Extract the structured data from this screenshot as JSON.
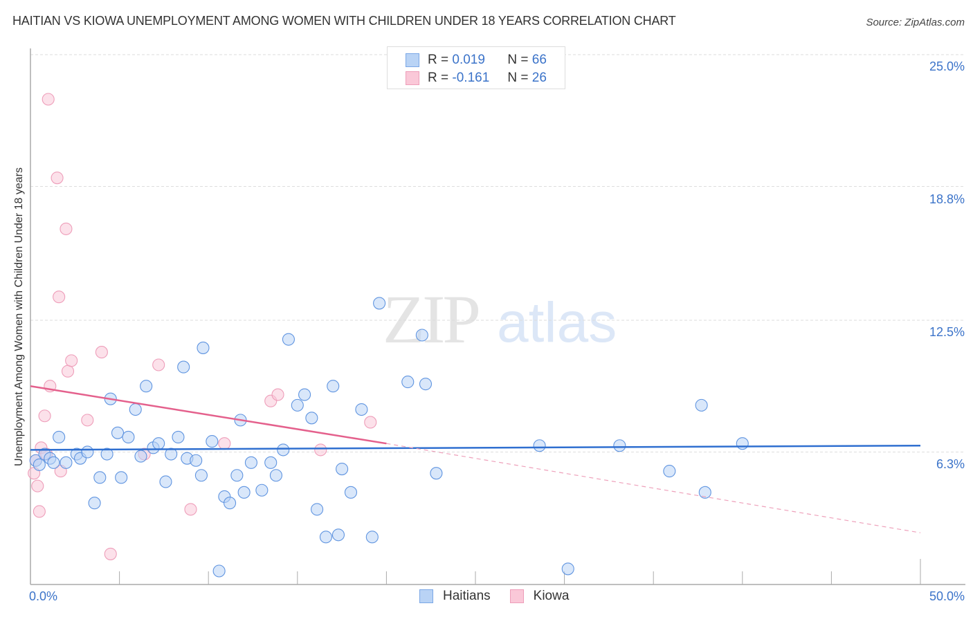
{
  "header": {
    "title": "HAITIAN VS KIOWA UNEMPLOYMENT AMONG WOMEN WITH CHILDREN UNDER 18 YEARS CORRELATION CHART",
    "source": "Source: ZipAtlas.com"
  },
  "watermark": {
    "zip": "ZIP",
    "atlas": "atlas"
  },
  "legend": {
    "rows": [
      {
        "r_label": "R =",
        "r_value": "0.019",
        "n_label": "N =",
        "n_value": "66",
        "color": "#b9d3f5",
        "border": "#7aa7e6"
      },
      {
        "r_label": "R =",
        "r_value": "-0.161",
        "n_label": "N =",
        "n_value": "26",
        "color": "#fac8d8",
        "border": "#ee9db9"
      }
    ]
  },
  "bottom_legend": [
    {
      "label": "Haitians",
      "color": "#b9d3f5",
      "border": "#7aa7e6"
    },
    {
      "label": "Kiowa",
      "color": "#fac8d8",
      "border": "#ee9db9"
    }
  ],
  "axes": {
    "ylabel": "Unemployment Among Women with Children Under 18 years",
    "x_ticks": [
      {
        "label": "0.0%"
      },
      {
        "label": "50.0%"
      }
    ],
    "y_ticks": [
      {
        "label": "25.0%"
      },
      {
        "label": "18.8%"
      },
      {
        "label": "12.5%"
      },
      {
        "label": "6.3%"
      }
    ]
  },
  "chart_data": {
    "type": "scatter",
    "title": "HAITIAN VS KIOWA UNEMPLOYMENT AMONG WOMEN WITH CHILDREN UNDER 18 YEARS CORRELATION CHART",
    "xlabel": "",
    "ylabel": "Unemployment Among Women with Children Under 18 years",
    "xlim": [
      0,
      50
    ],
    "ylim": [
      0,
      25
    ],
    "x_tick_labels": [
      "0.0%",
      "50.0%"
    ],
    "y_tick_labels": [
      "6.3%",
      "12.5%",
      "18.8%",
      "25.0%"
    ],
    "y_ticks": [
      6.3,
      12.5,
      18.8,
      25.0
    ],
    "grid": "horizontal dashed",
    "legend_position": "top-center and bottom",
    "series": [
      {
        "name": "Haitians",
        "color": "#7aa7e6",
        "R": 0.019,
        "N": 66,
        "trend": {
          "x": [
            0,
            50
          ],
          "y": [
            6.4,
            6.6
          ]
        },
        "points": [
          [
            0.3,
            5.9
          ],
          [
            0.5,
            5.7
          ],
          [
            0.8,
            6.2
          ],
          [
            1.1,
            6.0
          ],
          [
            1.3,
            5.8
          ],
          [
            1.6,
            7.0
          ],
          [
            2.0,
            5.8
          ],
          [
            2.6,
            6.2
          ],
          [
            2.8,
            6.0
          ],
          [
            3.2,
            6.3
          ],
          [
            3.6,
            3.9
          ],
          [
            3.9,
            5.1
          ],
          [
            4.3,
            6.2
          ],
          [
            4.5,
            8.8
          ],
          [
            4.9,
            7.2
          ],
          [
            5.1,
            5.1
          ],
          [
            5.5,
            7.0
          ],
          [
            5.9,
            8.3
          ],
          [
            6.2,
            6.1
          ],
          [
            6.5,
            9.4
          ],
          [
            6.9,
            6.5
          ],
          [
            7.2,
            6.7
          ],
          [
            7.6,
            4.9
          ],
          [
            7.9,
            6.2
          ],
          [
            8.3,
            7.0
          ],
          [
            8.6,
            10.3
          ],
          [
            8.8,
            6.0
          ],
          [
            9.3,
            5.9
          ],
          [
            9.6,
            5.2
          ],
          [
            9.7,
            11.2
          ],
          [
            10.2,
            6.8
          ],
          [
            10.6,
            0.7
          ],
          [
            10.9,
            4.2
          ],
          [
            11.2,
            3.9
          ],
          [
            11.6,
            5.2
          ],
          [
            11.8,
            7.8
          ],
          [
            12.0,
            4.4
          ],
          [
            12.4,
            5.8
          ],
          [
            13.0,
            4.5
          ],
          [
            13.5,
            5.8
          ],
          [
            13.8,
            5.2
          ],
          [
            14.2,
            6.4
          ],
          [
            14.5,
            11.6
          ],
          [
            15.0,
            8.5
          ],
          [
            15.4,
            9.0
          ],
          [
            15.8,
            7.9
          ],
          [
            16.1,
            3.6
          ],
          [
            16.6,
            2.3
          ],
          [
            17.0,
            9.4
          ],
          [
            17.3,
            2.4
          ],
          [
            17.5,
            5.5
          ],
          [
            18.0,
            4.4
          ],
          [
            18.6,
            8.3
          ],
          [
            19.2,
            2.3
          ],
          [
            19.6,
            13.3
          ],
          [
            21.2,
            9.6
          ],
          [
            22.0,
            11.8
          ],
          [
            22.2,
            9.5
          ],
          [
            22.8,
            5.3
          ],
          [
            28.6,
            6.6
          ],
          [
            30.2,
            0.8
          ],
          [
            33.1,
            6.6
          ],
          [
            35.9,
            5.4
          ],
          [
            37.7,
            8.5
          ],
          [
            37.9,
            4.4
          ],
          [
            40.0,
            6.7
          ]
        ]
      },
      {
        "name": "Kiowa",
        "color": "#ee9db9",
        "R": -0.161,
        "N": 26,
        "trend": {
          "x": [
            0,
            20
          ],
          "y": [
            9.4,
            6.7
          ]
        },
        "trend_extrapolated": {
          "x": [
            20,
            50
          ],
          "y": [
            6.7,
            2.5
          ]
        },
        "points": [
          [
            0.2,
            5.3
          ],
          [
            0.3,
            5.9
          ],
          [
            0.4,
            4.7
          ],
          [
            0.5,
            3.5
          ],
          [
            0.6,
            6.5
          ],
          [
            0.8,
            8.0
          ],
          [
            0.9,
            6.2
          ],
          [
            1.0,
            22.9
          ],
          [
            1.1,
            9.4
          ],
          [
            1.5,
            19.2
          ],
          [
            1.6,
            13.6
          ],
          [
            1.7,
            5.4
          ],
          [
            2.0,
            16.8
          ],
          [
            2.1,
            10.1
          ],
          [
            2.3,
            10.6
          ],
          [
            3.2,
            7.8
          ],
          [
            4.0,
            11.0
          ],
          [
            4.5,
            1.5
          ],
          [
            6.4,
            6.2
          ],
          [
            7.2,
            10.4
          ],
          [
            9.0,
            3.6
          ],
          [
            10.9,
            6.7
          ],
          [
            13.5,
            8.7
          ],
          [
            13.9,
            9.0
          ],
          [
            16.3,
            6.4
          ],
          [
            19.1,
            7.7
          ]
        ]
      }
    ]
  }
}
